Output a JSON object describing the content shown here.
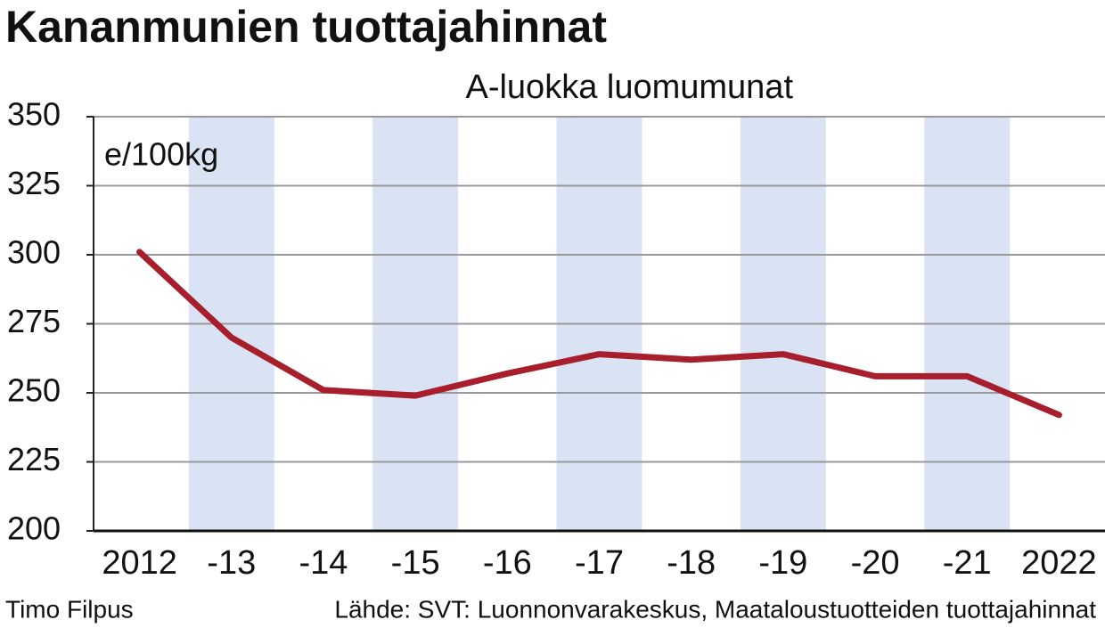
{
  "chart_data": {
    "type": "line",
    "title": "Kananmunien tuottajahinnat",
    "subtitle": "A-luokka luomumunat",
    "y_label": "e/100kg",
    "author": "Timo Filpus",
    "source": "Lähde: SVT: Luonnonvarakeskus, Maataloustuotteiden tuottajahinnat",
    "categories": [
      "2012",
      "-13",
      "-14",
      "-15",
      "-16",
      "-17",
      "-18",
      "-19",
      "-20",
      "-21",
      "2022"
    ],
    "values": [
      301,
      270,
      251,
      249,
      257,
      264,
      262,
      264,
      256,
      256,
      242
    ],
    "color": "#a71e2c",
    "band_color": "#d9e3f4",
    "ylim": [
      200,
      350
    ],
    "yticks": [
      200,
      225,
      250,
      275,
      300,
      325,
      350
    ],
    "grid": true
  }
}
